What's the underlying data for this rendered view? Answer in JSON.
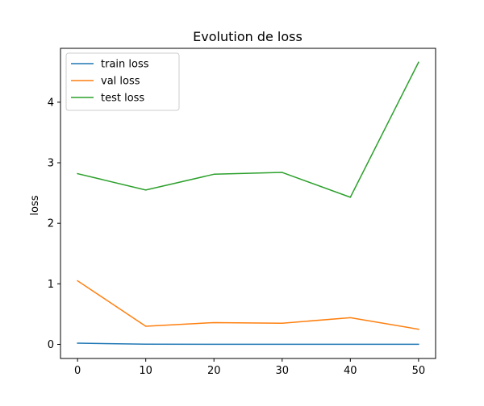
{
  "chart_data": {
    "type": "line",
    "title": "Evolution de loss",
    "xlabel": "",
    "ylabel": "loss",
    "x": [
      0,
      10,
      20,
      30,
      40,
      50
    ],
    "xlim": [
      -2.5,
      52.5
    ],
    "ylim": [
      -0.233,
      4.89
    ],
    "xticks": [
      0,
      10,
      20,
      30,
      40,
      50
    ],
    "yticks": [
      0,
      1,
      2,
      3,
      4
    ],
    "grid": false,
    "legend_position": "upper left",
    "series": [
      {
        "name": "train loss",
        "color": "#1f77b4",
        "values": [
          0.02,
          0.003,
          0.002,
          0.002,
          0.002,
          0.002
        ]
      },
      {
        "name": "val loss",
        "color": "#ff7f0e",
        "values": [
          1.05,
          0.3,
          0.36,
          0.35,
          0.44,
          0.25
        ]
      },
      {
        "name": "test loss",
        "color": "#2ca02c",
        "values": [
          2.82,
          2.55,
          2.81,
          2.84,
          2.43,
          4.66
        ]
      }
    ]
  }
}
